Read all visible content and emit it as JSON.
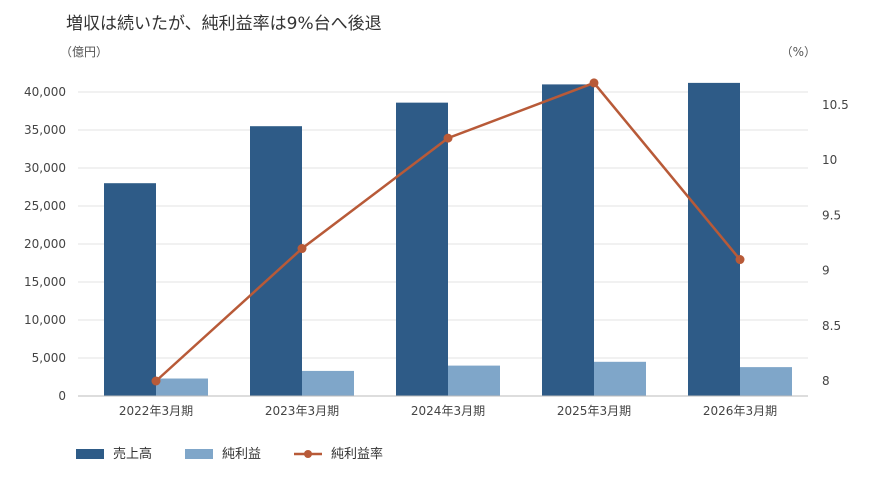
{
  "chart_data": {
    "type": "bar",
    "title": "増収は続いたが、純利益率は9%台へ後退",
    "y_left_unit": "（億円）",
    "y_right_unit": "（%）",
    "categories": [
      "2022年3月期",
      "2023年3月期",
      "2024年3月期",
      "2025年3月期",
      "2026年3月期"
    ],
    "series": [
      {
        "name": "売上高",
        "kind": "bar",
        "axis": "left",
        "color": "#2e5b87",
        "values": [
          28000,
          35500,
          38600,
          41000,
          41200
        ]
      },
      {
        "name": "純利益",
        "kind": "bar",
        "axis": "left",
        "color": "#7fa6c9",
        "values": [
          2300,
          3300,
          4000,
          4500,
          3800
        ]
      },
      {
        "name": "純利益率",
        "kind": "line",
        "axis": "right",
        "color": "#b85a38",
        "values": [
          8.0,
          9.2,
          10.2,
          10.7,
          9.1
        ]
      }
    ],
    "y_left": {
      "min": 0,
      "max": 40000,
      "ticks": [
        0,
        5000,
        10000,
        15000,
        20000,
        25000,
        30000,
        35000,
        40000
      ],
      "tick_labels": [
        "0",
        "5,000",
        "10,000",
        "15,000",
        "20,000",
        "25,000",
        "30,000",
        "35,000",
        "40,000"
      ]
    },
    "y_right": {
      "min": 8,
      "max": 10.5,
      "ticks": [
        8,
        8.5,
        9,
        9.5,
        10,
        10.5
      ],
      "tick_labels": [
        "8",
        "8.5",
        "9",
        "9.5",
        "10",
        "10.5"
      ]
    },
    "grid": true,
    "legend_position": "bottom-left"
  }
}
